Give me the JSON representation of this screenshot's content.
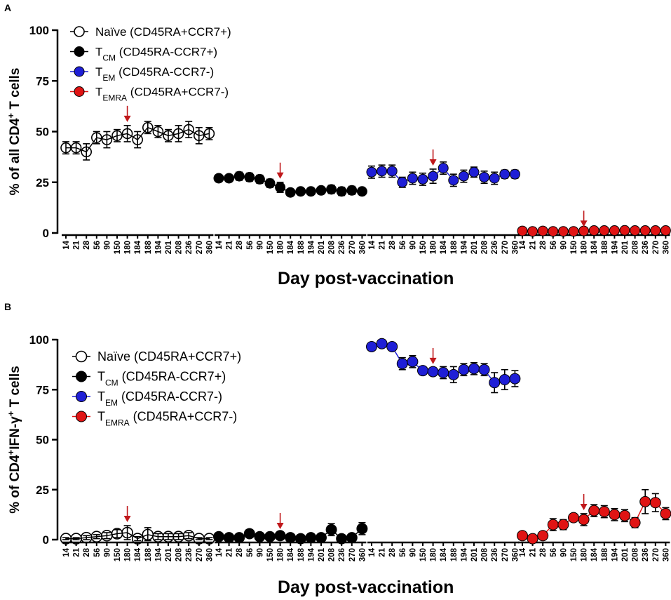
{
  "chart_data": [
    {
      "type": "scatter",
      "panel": "A",
      "ylabel_prefix": "% of all CD4",
      "ylabel_sup": "+",
      "ylabel_suffix": " T cells",
      "xlabel": "Day post-vaccination",
      "ylim": [
        0,
        100
      ],
      "yticks": [
        "0",
        "25",
        "50",
        "75",
        "100"
      ],
      "categories": [
        "14",
        "21",
        "28",
        "56",
        "90",
        "150",
        "180",
        "184",
        "188",
        "194",
        "201",
        "208",
        "236",
        "270",
        "360"
      ],
      "arrow_day": "180",
      "arrow_color": "#c0181b",
      "legend": [
        {
          "base": "Naïve",
          "sub": "",
          "desc": " (CD45RA+CCR7+)"
        },
        {
          "base": "T",
          "sub": "CM",
          "desc": " (CD45RA-CCR7+)"
        },
        {
          "base": "T",
          "sub": "EM",
          "desc": " (CD45RA-CCR7-)"
        },
        {
          "base": "T",
          "sub": "EMRA",
          "desc": " (CD45RA+CCR7-)"
        }
      ],
      "series": [
        {
          "name": "Naïve (CD45RA+CCR7+)",
          "color": "#000000",
          "fill": "none",
          "values": [
            42,
            42,
            40,
            47,
            46,
            48,
            49,
            46,
            52,
            50,
            48,
            49,
            51,
            48,
            49
          ],
          "errors": [
            3,
            3,
            4,
            3,
            4,
            3,
            4,
            4,
            3,
            3,
            3,
            4,
            4,
            4,
            3
          ]
        },
        {
          "name": "TCM (CD45RA-CCR7+)",
          "color": "#000000",
          "fill": "#000000",
          "values": [
            27,
            27,
            28,
            27.5,
            26.5,
            24.5,
            22.5,
            20,
            20.5,
            20.5,
            21,
            21.5,
            20.5,
            21,
            20.5
          ],
          "errors": [
            1,
            1,
            2,
            2,
            2,
            2,
            2.5,
            1,
            1,
            1,
            1.5,
            2,
            2,
            2,
            1
          ]
        },
        {
          "name": "TEM (CD45RA-CCR7-)",
          "color": "#1f1fd6",
          "fill": "#1f1fd6",
          "values": [
            30,
            30.5,
            30.5,
            25,
            27,
            26.5,
            28,
            32,
            26,
            28,
            30,
            27.5,
            27,
            29,
            29
          ],
          "errors": [
            3,
            3,
            3,
            2.5,
            3,
            3,
            3.5,
            3,
            3,
            3,
            2.5,
            3,
            3,
            2,
            2
          ]
        },
        {
          "name": "TEMRA (CD45RA+CCR7-)",
          "color": "#e01414",
          "fill": "#e01414",
          "values": [
            1,
            0.8,
            1,
            0.8,
            0.8,
            0.8,
            1,
            1.2,
            1.2,
            1.2,
            1.3,
            1.2,
            1.2,
            1.2,
            1.2
          ],
          "errors": [
            0.3,
            0.3,
            0.3,
            0.3,
            0.3,
            0.3,
            0.3,
            0.3,
            0.3,
            0.3,
            0.3,
            0.3,
            0.3,
            0.3,
            0.3
          ]
        }
      ]
    },
    {
      "type": "scatter",
      "panel": "B",
      "ylabel_prefix": "% of CD4",
      "ylabel_sup": "+",
      "ylabel_mid": "IFN-γ",
      "ylabel_sup2": "+",
      "ylabel_suffix": " T cells",
      "xlabel": "Day post-vaccination",
      "ylim": [
        0,
        100
      ],
      "yticks": [
        "0",
        "25",
        "50",
        "75",
        "100"
      ],
      "categories": [
        "14",
        "21",
        "28",
        "56",
        "90",
        "150",
        "180",
        "184",
        "188",
        "194",
        "201",
        "208",
        "236",
        "270",
        "360"
      ],
      "arrow_day": "180",
      "arrow_color": "#c0181b",
      "legend": [
        {
          "base": "Naïve",
          "sub": "",
          "desc": " (CD45RA+CCR7+)"
        },
        {
          "base": "T",
          "sub": "CM",
          "desc": " (CD45RA-CCR7+)"
        },
        {
          "base": "T",
          "sub": "EM",
          "desc": " (CD45RA-CCR7-)"
        },
        {
          "base": "T",
          "sub": "EMRA",
          "desc": " (CD45RA+CCR7-)"
        }
      ],
      "series": [
        {
          "name": "Naïve (CD45RA+CCR7+)",
          "color": "#000000",
          "fill": "none",
          "values": [
            0.5,
            0.5,
            1,
            1.5,
            2,
            3,
            3.5,
            0.5,
            2.5,
            1.5,
            1.5,
            1.5,
            2,
            0.5,
            0.5
          ],
          "errors": [
            0.5,
            0.5,
            1,
            1,
            1.5,
            2,
            3.5,
            1,
            3.5,
            1.5,
            1.5,
            1.5,
            1.5,
            0.5,
            0.5
          ]
        },
        {
          "name": "TCM (CD45RA-CCR7+)",
          "color": "#000000",
          "fill": "#000000",
          "values": [
            1.5,
            1,
            1,
            3,
            1.5,
            1.5,
            2,
            1,
            0.5,
            1,
            1,
            5,
            0.5,
            1,
            5.5
          ],
          "errors": [
            1,
            1,
            1,
            2,
            1.5,
            1.5,
            1.5,
            1,
            0.5,
            1,
            1,
            3,
            0.5,
            1,
            3
          ]
        },
        {
          "name": "TEM (CD45RA-CCR7-)",
          "color": "#1f1fd6",
          "fill": "#1f1fd6",
          "values": [
            96.5,
            98,
            96.5,
            88,
            89,
            84.5,
            84,
            83.5,
            82.5,
            85,
            85.5,
            85,
            78.5,
            80,
            80.5
          ],
          "errors": [
            1,
            1,
            1.5,
            3,
            3,
            2,
            2,
            3,
            4,
            3,
            3,
            3,
            5,
            5,
            4
          ]
        },
        {
          "name": "TEMRA (CD45RA+CCR7-)",
          "color": "#e01414",
          "fill": "#e01414",
          "values": [
            2,
            0.5,
            2,
            7.5,
            7.5,
            11,
            10,
            14.5,
            14,
            12.5,
            12,
            8.5,
            19,
            18.5,
            13
          ],
          "errors": [
            1,
            0.5,
            1,
            3,
            2.5,
            2,
            3,
            3,
            3,
            3,
            3,
            2.5,
            6,
            4.5,
            3
          ]
        }
      ]
    }
  ]
}
